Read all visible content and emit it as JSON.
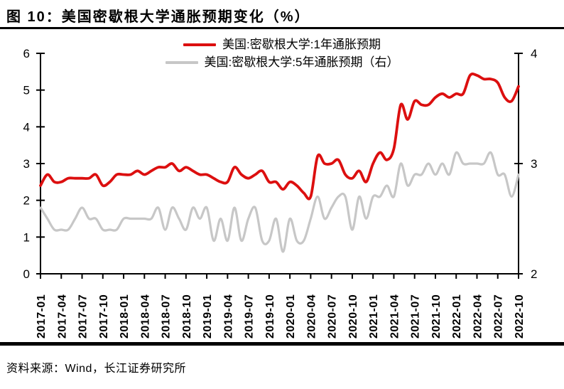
{
  "figure": {
    "title": "图 10：美国密歇根大学通胀预期变化（%）",
    "source": "资料来源：Wind，长江证券研究所"
  },
  "colors": {
    "series_1y": "#dc0f0f",
    "series_5y": "#c7c7c7",
    "axis": "#000000",
    "text": "#000000",
    "rule": "#000000"
  },
  "legend": [
    {
      "label": "美国:密歇根大学:1年通胀预期",
      "color": "#dc0f0f"
    },
    {
      "label": "美国:密歇根大学:5年通胀预期（右）",
      "color": "#c7c7c7"
    }
  ],
  "chart_data": {
    "type": "line",
    "title": "美国密歇根大学通胀预期变化（%）",
    "x": [
      "2017-01",
      "2017-02",
      "2017-03",
      "2017-04",
      "2017-05",
      "2017-06",
      "2017-07",
      "2017-08",
      "2017-09",
      "2017-10",
      "2017-11",
      "2017-12",
      "2018-01",
      "2018-02",
      "2018-03",
      "2018-04",
      "2018-05",
      "2018-06",
      "2018-07",
      "2018-08",
      "2018-09",
      "2018-10",
      "2018-11",
      "2018-12",
      "2019-01",
      "2019-02",
      "2019-03",
      "2019-04",
      "2019-05",
      "2019-06",
      "2019-07",
      "2019-08",
      "2019-09",
      "2019-10",
      "2019-11",
      "2019-12",
      "2020-01",
      "2020-02",
      "2020-03",
      "2020-04",
      "2020-05",
      "2020-06",
      "2020-07",
      "2020-08",
      "2020-09",
      "2020-10",
      "2020-11",
      "2020-12",
      "2021-01",
      "2021-02",
      "2021-03",
      "2021-04",
      "2021-05",
      "2021-06",
      "2021-07",
      "2021-08",
      "2021-09",
      "2021-10",
      "2021-11",
      "2021-12",
      "2022-01",
      "2022-02",
      "2022-03",
      "2022-04",
      "2022-05",
      "2022-06",
      "2022-07",
      "2022-08",
      "2022-09",
      "2022-10"
    ],
    "x_tick_every": 3,
    "series": [
      {
        "name": "美国:密歇根大学:1年通胀预期",
        "axis": "left",
        "color": "#dc0f0f",
        "values": [
          2.4,
          2.7,
          2.5,
          2.5,
          2.6,
          2.6,
          2.6,
          2.6,
          2.7,
          2.4,
          2.5,
          2.7,
          2.7,
          2.7,
          2.8,
          2.7,
          2.8,
          2.9,
          2.9,
          3.0,
          2.8,
          2.9,
          2.8,
          2.7,
          2.7,
          2.6,
          2.5,
          2.5,
          2.9,
          2.7,
          2.6,
          2.7,
          2.8,
          2.5,
          2.5,
          2.3,
          2.5,
          2.4,
          2.2,
          2.1,
          3.2,
          3.0,
          3.0,
          3.1,
          2.7,
          2.6,
          2.8,
          2.5,
          3.0,
          3.3,
          3.1,
          3.4,
          4.6,
          4.2,
          4.7,
          4.6,
          4.6,
          4.8,
          4.9,
          4.8,
          4.9,
          4.9,
          5.4,
          5.4,
          5.3,
          5.3,
          5.2,
          4.8,
          4.7,
          5.1
        ]
      },
      {
        "name": "美国:密歇根大学:5年通胀预期（右）",
        "axis": "right",
        "color": "#c7c7c7",
        "values": [
          2.6,
          2.5,
          2.4,
          2.4,
          2.4,
          2.5,
          2.6,
          2.5,
          2.5,
          2.4,
          2.4,
          2.4,
          2.5,
          2.5,
          2.5,
          2.5,
          2.5,
          2.6,
          2.4,
          2.6,
          2.5,
          2.4,
          2.6,
          2.5,
          2.6,
          2.3,
          2.5,
          2.3,
          2.6,
          2.3,
          2.5,
          2.6,
          2.3,
          2.3,
          2.5,
          2.2,
          2.5,
          2.3,
          2.3,
          2.5,
          2.7,
          2.5,
          2.6,
          2.7,
          2.7,
          2.4,
          2.7,
          2.5,
          2.7,
          2.7,
          2.8,
          2.7,
          3.0,
          2.8,
          2.9,
          2.9,
          3.0,
          2.9,
          3.0,
          2.9,
          3.1,
          3.0,
          3.0,
          3.0,
          3.0,
          3.1,
          2.9,
          2.9,
          2.7,
          2.9
        ]
      }
    ],
    "left_axis": {
      "min": 0,
      "max": 6,
      "ticks": [
        0,
        1,
        2,
        3,
        4,
        5,
        6
      ]
    },
    "right_axis": {
      "min": 2,
      "max": 4,
      "ticks": [
        2,
        3,
        4
      ]
    },
    "grid": false,
    "legend_position": "top-center"
  }
}
